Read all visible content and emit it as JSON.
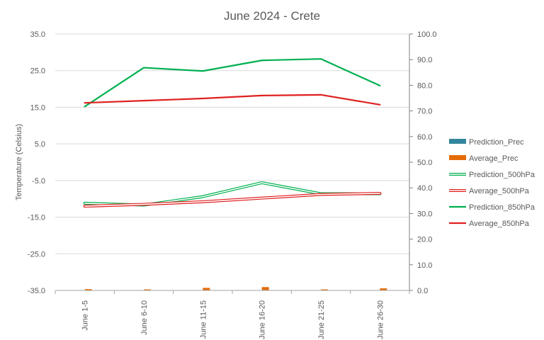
{
  "chart_data": {
    "type": "line",
    "title": "June 2024 - Crete",
    "ylabel": "Temperature (Celsius)",
    "y2label": "",
    "xlabel": "",
    "categories": [
      "June 1-5",
      "June 6-10",
      "June 11-15",
      "June 16-20",
      "June 21-25",
      "June 26-30"
    ],
    "ylim": [
      -35,
      35
    ],
    "y_ticks": [
      "35.0",
      "25.0",
      "15.0",
      "5.0",
      "-5.0",
      "-15.0",
      "-25.0",
      "-35.0"
    ],
    "y2lim": [
      0,
      100
    ],
    "y2_ticks": [
      "100.0",
      "90.0",
      "80.0",
      "70.0",
      "60.0",
      "50.0",
      "40.0",
      "30.0",
      "20.0",
      "10.0",
      "0.0"
    ],
    "grid": true,
    "legend_position": "right",
    "series": [
      {
        "name": "Prediction_Prec",
        "kind": "bar",
        "axis": "right",
        "color": "#31859c",
        "values": [
          0.1,
          0.1,
          0.1,
          0.1,
          0.1,
          0.1
        ]
      },
      {
        "name": "Average_Prec",
        "kind": "bar",
        "axis": "right",
        "color": "#e36c09",
        "values": [
          0.5,
          0.4,
          1.0,
          1.3,
          0.4,
          0.8
        ]
      },
      {
        "name": "Prediction_500hPa",
        "kind": "line",
        "style": "double",
        "axis": "left",
        "color": "#00b050",
        "values": [
          -11.2,
          -11.7,
          -9.4,
          -5.6,
          -8.6,
          -8.6
        ]
      },
      {
        "name": "Average_500hPa",
        "kind": "line",
        "style": "double",
        "axis": "left",
        "color": "#e02020",
        "values": [
          -12.0,
          -11.5,
          -10.8,
          -9.8,
          -8.8,
          -8.5
        ]
      },
      {
        "name": "Prediction_850hPa",
        "kind": "line",
        "style": "solid",
        "axis": "left",
        "color": "#00b050",
        "values": [
          15.2,
          25.8,
          24.9,
          27.8,
          28.2,
          20.9
        ]
      },
      {
        "name": "Average_850hPa",
        "kind": "line",
        "style": "solid",
        "axis": "left",
        "color": "#e02020",
        "values": [
          16.2,
          16.8,
          17.4,
          18.2,
          18.4,
          15.7
        ]
      }
    ]
  }
}
